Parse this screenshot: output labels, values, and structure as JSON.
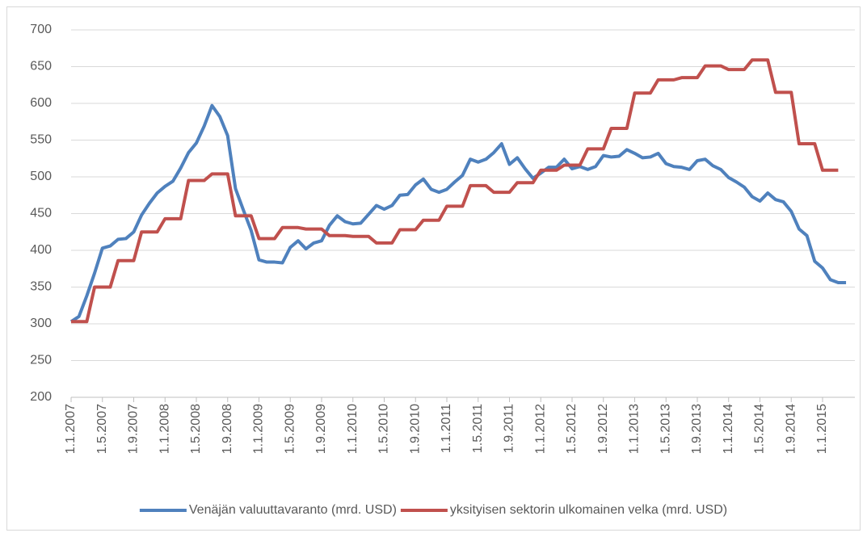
{
  "chart_data": {
    "type": "line",
    "categories": [
      "1.1.2007",
      null,
      null,
      null,
      "1.5.2007",
      null,
      null,
      null,
      "1.9.2007",
      null,
      null,
      null,
      "1.1.2008",
      null,
      null,
      null,
      "1.5.2008",
      null,
      null,
      null,
      "1.9.2008",
      null,
      null,
      null,
      "1.1.2009",
      null,
      null,
      null,
      "1.5.2009",
      null,
      null,
      null,
      "1.9.2009",
      null,
      null,
      null,
      "1.1.2010",
      null,
      null,
      null,
      "1.5.2010",
      null,
      null,
      null,
      "1.9.2010",
      null,
      null,
      null,
      "1.1.2011",
      null,
      null,
      null,
      "1.5.2011",
      null,
      null,
      null,
      "1.9.2011",
      null,
      null,
      null,
      "1.1.2012",
      null,
      null,
      null,
      "1.5.2012",
      null,
      null,
      null,
      "1.9.2012",
      null,
      null,
      null,
      "1.1.2013",
      null,
      null,
      null,
      "1.5.2013",
      null,
      null,
      null,
      "1.9.2013",
      null,
      null,
      null,
      "1.1.2014",
      null,
      null,
      null,
      "1.5.2014",
      null,
      null,
      null,
      "1.9.2014",
      null,
      null,
      null,
      "1.1.2015",
      null,
      null,
      null
    ],
    "series": [
      {
        "name": "Venäjän valuuttavaranto (mrd. USD)",
        "color": "#4f81bd",
        "values": [
          303,
          310,
          338,
          369,
          403,
          406,
          415,
          416,
          425,
          448,
          464,
          478,
          487,
          494,
          512,
          533,
          546,
          569,
          597,
          582,
          556,
          484,
          455,
          427,
          387,
          384,
          384,
          383,
          404,
          413,
          402,
          410,
          413,
          434,
          447,
          439,
          436,
          437,
          449,
          461,
          456,
          461,
          475,
          476,
          489,
          497,
          483,
          479,
          483,
          493,
          502,
          524,
          520,
          524,
          533,
          545,
          517,
          526,
          511,
          498,
          505,
          513,
          513,
          524,
          511,
          514,
          510,
          514,
          529,
          527,
          528,
          537,
          532,
          526,
          527,
          532,
          518,
          514,
          513,
          510,
          522,
          524,
          515,
          510,
          499,
          493,
          486,
          473,
          467,
          478,
          469,
          466,
          453,
          429,
          420,
          385,
          376,
          360,
          356,
          356
        ]
      },
      {
        "name": "yksityisen sektorin ulkomainen velka (mrd. USD)",
        "color": "#c0504d",
        "values": [
          303,
          303,
          303,
          350,
          350,
          350,
          386,
          386,
          386,
          425,
          425,
          425,
          443,
          443,
          443,
          495,
          495,
          495,
          504,
          504,
          504,
          447,
          447,
          447,
          416,
          416,
          416,
          431,
          431,
          431,
          429,
          429,
          429,
          420,
          420,
          420,
          419,
          419,
          419,
          410,
          410,
          410,
          428,
          428,
          428,
          441,
          441,
          441,
          460,
          460,
          460,
          488,
          488,
          488,
          479,
          479,
          479,
          492,
          492,
          492,
          509,
          509,
          509,
          516,
          516,
          516,
          538,
          538,
          538,
          566,
          566,
          566,
          614,
          614,
          614,
          632,
          632,
          632,
          635,
          635,
          635,
          651,
          651,
          651,
          646,
          646,
          646,
          659,
          659,
          659,
          615,
          615,
          615,
          545,
          545,
          545,
          509,
          509,
          509,
          null
        ]
      }
    ],
    "ylim": [
      200,
      700
    ],
    "yticks": [
      200,
      250,
      300,
      350,
      400,
      450,
      500,
      550,
      600,
      650,
      700
    ],
    "grid": true,
    "legend": "bottom"
  }
}
